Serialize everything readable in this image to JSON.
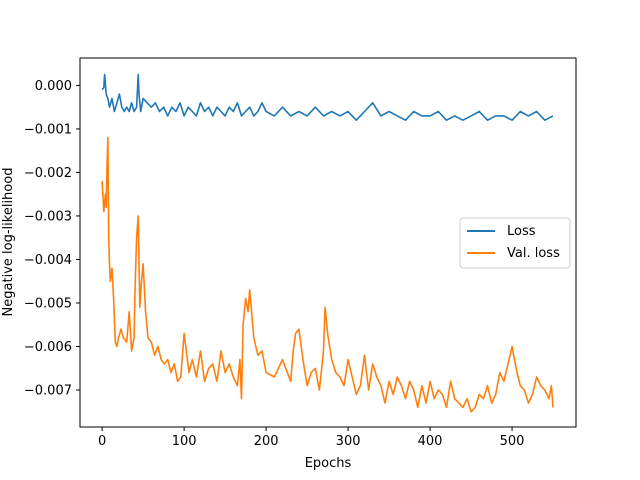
{
  "chart_data": {
    "type": "line",
    "title": "",
    "xlabel": "Epochs",
    "ylabel": "Negative log-likelihood",
    "xlim": [
      -27,
      578
    ],
    "ylim": [
      -0.00785,
      0.00063
    ],
    "x_ticks": [
      0,
      100,
      200,
      300,
      400,
      500
    ],
    "y_ticks": [
      0.0,
      -0.001,
      -0.002,
      -0.003,
      -0.004,
      -0.005,
      -0.006,
      -0.007
    ],
    "y_tick_labels": [
      "0.000",
      "−0.001",
      "−0.002",
      "−0.003",
      "−0.004",
      "−0.005",
      "−0.006",
      "−0.007"
    ],
    "grid": false,
    "legend_position": "center-right",
    "series": [
      {
        "name": "Loss",
        "color": "#1f77b4",
        "x": [
          0,
          2,
          3,
          5,
          7,
          9,
          12,
          15,
          18,
          21,
          24,
          27,
          30,
          33,
          36,
          39,
          42,
          44,
          45,
          47,
          50,
          55,
          60,
          65,
          70,
          75,
          80,
          85,
          90,
          95,
          100,
          105,
          110,
          115,
          120,
          125,
          130,
          135,
          140,
          145,
          150,
          155,
          160,
          165,
          170,
          175,
          180,
          185,
          190,
          195,
          200,
          210,
          220,
          230,
          240,
          250,
          260,
          270,
          280,
          290,
          300,
          310,
          320,
          330,
          340,
          350,
          360,
          370,
          380,
          390,
          400,
          410,
          420,
          430,
          440,
          450,
          460,
          470,
          480,
          490,
          500,
          510,
          520,
          530,
          540,
          550
        ],
        "y": [
          -0.0001,
          -5e-05,
          0.00025,
          -0.0002,
          -0.0003,
          -0.0005,
          -0.0003,
          -0.0006,
          -0.0004,
          -0.0002,
          -0.0005,
          -0.0006,
          -0.0005,
          -0.0006,
          -0.0004,
          -0.0006,
          -0.0005,
          0.00025,
          -0.0002,
          -0.0006,
          -0.0003,
          -0.0004,
          -0.0005,
          -0.0004,
          -0.0006,
          -0.0005,
          -0.0007,
          -0.0005,
          -0.0006,
          -0.0004,
          -0.0007,
          -0.0005,
          -0.0006,
          -0.0007,
          -0.0004,
          -0.0006,
          -0.0005,
          -0.0007,
          -0.0005,
          -0.0006,
          -0.0007,
          -0.0005,
          -0.0006,
          -0.0004,
          -0.0007,
          -0.0006,
          -0.0005,
          -0.0007,
          -0.0006,
          -0.0004,
          -0.0006,
          -0.0007,
          -0.0005,
          -0.0007,
          -0.0006,
          -0.0007,
          -0.0005,
          -0.0007,
          -0.0006,
          -0.0007,
          -0.0006,
          -0.0008,
          -0.0006,
          -0.0004,
          -0.0007,
          -0.0006,
          -0.0007,
          -0.0008,
          -0.0006,
          -0.0007,
          -0.0007,
          -0.0006,
          -0.0008,
          -0.0007,
          -0.0008,
          -0.0007,
          -0.0006,
          -0.0008,
          -0.0007,
          -0.0007,
          -0.0008,
          -0.0006,
          -0.0007,
          -0.0006,
          -0.0008,
          -0.0007
        ]
      },
      {
        "name": "Val. loss",
        "color": "#ff7f0e",
        "x": [
          0,
          2,
          4,
          5,
          6,
          7,
          8,
          9,
          10,
          12,
          14,
          16,
          18,
          20,
          23,
          26,
          30,
          33,
          36,
          39,
          40,
          42,
          44,
          46,
          48,
          50,
          53,
          56,
          60,
          64,
          68,
          72,
          76,
          80,
          84,
          88,
          92,
          96,
          100,
          102,
          106,
          110,
          115,
          120,
          125,
          130,
          135,
          140,
          145,
          150,
          155,
          160,
          165,
          168,
          170,
          172,
          175,
          178,
          180,
          185,
          190,
          195,
          200,
          210,
          220,
          230,
          233,
          236,
          240,
          245,
          250,
          255,
          260,
          265,
          270,
          272,
          275,
          280,
          285,
          290,
          295,
          300,
          305,
          310,
          315,
          320,
          325,
          330,
          335,
          340,
          345,
          350,
          355,
          360,
          365,
          370,
          375,
          380,
          385,
          390,
          395,
          400,
          405,
          410,
          415,
          420,
          425,
          430,
          435,
          440,
          445,
          450,
          455,
          460,
          465,
          470,
          475,
          480,
          485,
          490,
          495,
          500,
          503,
          506,
          510,
          515,
          520,
          525,
          530,
          535,
          540,
          545,
          548,
          550
        ],
        "y": [
          -0.0022,
          -0.0029,
          -0.0025,
          -0.0028,
          -0.0018,
          -0.0012,
          -0.0035,
          -0.0041,
          -0.0045,
          -0.0042,
          -0.0049,
          -0.0059,
          -0.006,
          -0.0058,
          -0.0056,
          -0.0058,
          -0.0059,
          -0.0052,
          -0.0061,
          -0.0058,
          -0.0048,
          -0.0035,
          -0.003,
          -0.0051,
          -0.0045,
          -0.0041,
          -0.0052,
          -0.0058,
          -0.0059,
          -0.0062,
          -0.006,
          -0.0063,
          -0.0064,
          -0.0063,
          -0.0066,
          -0.0064,
          -0.0068,
          -0.0067,
          -0.0057,
          -0.006,
          -0.0066,
          -0.0063,
          -0.0067,
          -0.0061,
          -0.0068,
          -0.0065,
          -0.0064,
          -0.0068,
          -0.0061,
          -0.0066,
          -0.0064,
          -0.0067,
          -0.0069,
          -0.0063,
          -0.0072,
          -0.0055,
          -0.0049,
          -0.0052,
          -0.0047,
          -0.0058,
          -0.0062,
          -0.0061,
          -0.0066,
          -0.0067,
          -0.0063,
          -0.0068,
          -0.0061,
          -0.0057,
          -0.0056,
          -0.0063,
          -0.0069,
          -0.0066,
          -0.0065,
          -0.007,
          -0.0061,
          -0.0051,
          -0.0057,
          -0.0063,
          -0.0066,
          -0.0067,
          -0.0069,
          -0.0063,
          -0.0067,
          -0.0071,
          -0.0069,
          -0.0062,
          -0.007,
          -0.0064,
          -0.0067,
          -0.0069,
          -0.0073,
          -0.0068,
          -0.0071,
          -0.0067,
          -0.0069,
          -0.0072,
          -0.0068,
          -0.007,
          -0.0074,
          -0.0069,
          -0.0073,
          -0.0068,
          -0.0072,
          -0.007,
          -0.0071,
          -0.0074,
          -0.0068,
          -0.0072,
          -0.0073,
          -0.0074,
          -0.0072,
          -0.0075,
          -0.0074,
          -0.0071,
          -0.0072,
          -0.0069,
          -0.0073,
          -0.0071,
          -0.0066,
          -0.0068,
          -0.0064,
          -0.006,
          -0.0063,
          -0.0066,
          -0.0069,
          -0.007,
          -0.0073,
          -0.0071,
          -0.0067,
          -0.0069,
          -0.007,
          -0.0072,
          -0.0069,
          -0.0074
        ]
      }
    ]
  }
}
